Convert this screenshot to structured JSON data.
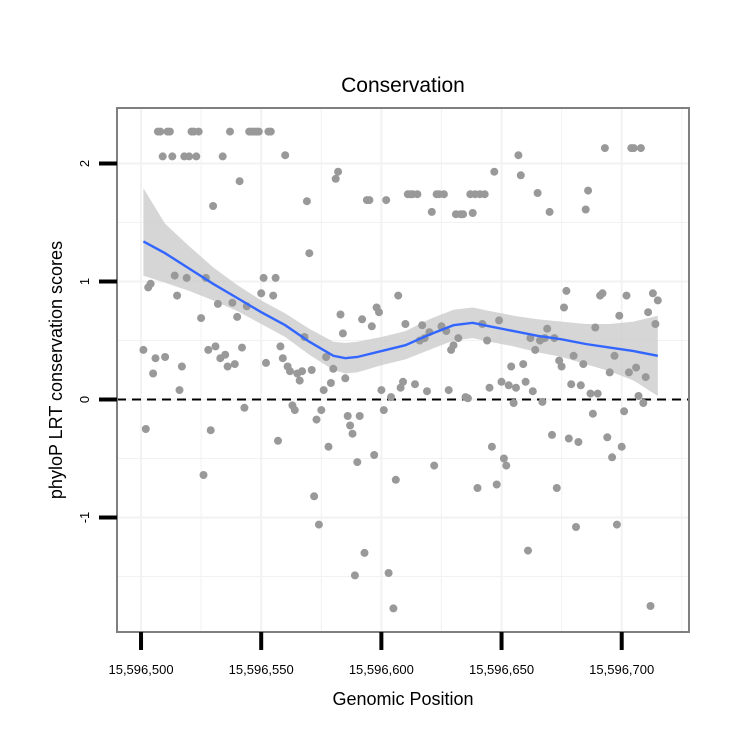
{
  "chart_data": {
    "type": "scatter",
    "title": "Conservation",
    "xlabel": "Genomic Position",
    "ylabel": "phyloP LRT conservation scores",
    "xlim": [
      15596490,
      15596728
    ],
    "ylim": [
      -1.97,
      2.47
    ],
    "x_ticks": [
      15596500,
      15596550,
      15596600,
      15596650,
      15596700
    ],
    "x_tick_labels": [
      "15,596,500",
      "15,596,550",
      "15,596,600",
      "15,596,650",
      "15,596,700"
    ],
    "y_ticks": [
      -1,
      0,
      1,
      2
    ],
    "y_tick_labels": [
      "-1",
      "0",
      "1",
      "2"
    ],
    "colors": {
      "points": "#999999",
      "smooth_line": "#3366ff",
      "ribbon": "#c8c8c8",
      "panel_border": "#7f7f7f",
      "grid": "#f2f2f2",
      "reference_line": "#000000"
    },
    "reference_line": {
      "y": 0,
      "style": "dashed"
    },
    "points": [
      [
        15596501,
        0.42
      ],
      [
        15596502,
        -0.25
      ],
      [
        15596503,
        0.95
      ],
      [
        15596504,
        0.98
      ],
      [
        15596505,
        0.22
      ],
      [
        15596506,
        0.35
      ],
      [
        15596507,
        2.27
      ],
      [
        15596508,
        2.27
      ],
      [
        15596509,
        2.06
      ],
      [
        15596510,
        0.36
      ],
      [
        15596511,
        2.27
      ],
      [
        15596512,
        2.27
      ],
      [
        15596513,
        2.06
      ],
      [
        15596514,
        1.05
      ],
      [
        15596515,
        0.88
      ],
      [
        15596516,
        0.08
      ],
      [
        15596517,
        0.28
      ],
      [
        15596518,
        2.06
      ],
      [
        15596519,
        1.03
      ],
      [
        15596520,
        2.06
      ],
      [
        15596521,
        2.27
      ],
      [
        15596522,
        2.27
      ],
      [
        15596523,
        2.06
      ],
      [
        15596524,
        2.27
      ],
      [
        15596525,
        0.69
      ],
      [
        15596526,
        -0.64
      ],
      [
        15596527,
        1.03
      ],
      [
        15596528,
        0.42
      ],
      [
        15596529,
        -0.26
      ],
      [
        15596530,
        1.64
      ],
      [
        15596531,
        0.45
      ],
      [
        15596532,
        0.81
      ],
      [
        15596533,
        0.35
      ],
      [
        15596534,
        2.06
      ],
      [
        15596535,
        0.38
      ],
      [
        15596536,
        0.28
      ],
      [
        15596537,
        2.27
      ],
      [
        15596538,
        0.82
      ],
      [
        15596539,
        0.3
      ],
      [
        15596540,
        0.7
      ],
      [
        15596541,
        1.85
      ],
      [
        15596542,
        0.44
      ],
      [
        15596543,
        -0.07
      ],
      [
        15596544,
        0.79
      ],
      [
        15596545,
        2.27
      ],
      [
        15596546,
        2.27
      ],
      [
        15596547,
        2.27
      ],
      [
        15596548,
        2.27
      ],
      [
        15596549,
        2.27
      ],
      [
        15596550,
        0.9
      ],
      [
        15596551,
        1.03
      ],
      [
        15596552,
        0.31
      ],
      [
        15596553,
        2.27
      ],
      [
        15596554,
        2.27
      ],
      [
        15596555,
        0.88
      ],
      [
        15596556,
        1.03
      ],
      [
        15596557,
        -0.35
      ],
      [
        15596558,
        0.45
      ],
      [
        15596559,
        0.35
      ],
      [
        15596560,
        2.07
      ],
      [
        15596561,
        0.28
      ],
      [
        15596562,
        0.24
      ],
      [
        15596563,
        -0.05
      ],
      [
        15596564,
        -0.09
      ],
      [
        15596565,
        0.22
      ],
      [
        15596566,
        0.16
      ],
      [
        15596567,
        0.24
      ],
      [
        15596568,
        0.53
      ],
      [
        15596569,
        1.68
      ],
      [
        15596570,
        1.24
      ],
      [
        15596571,
        0.25
      ],
      [
        15596572,
        -0.82
      ],
      [
        15596573,
        -0.17
      ],
      [
        15596574,
        -1.06
      ],
      [
        15596575,
        -0.09
      ],
      [
        15596576,
        0.08
      ],
      [
        15596577,
        0.36
      ],
      [
        15596578,
        -0.4
      ],
      [
        15596579,
        0.14
      ],
      [
        15596580,
        0.26
      ],
      [
        15596581,
        1.87
      ],
      [
        15596582,
        1.93
      ],
      [
        15596583,
        0.72
      ],
      [
        15596584,
        0.56
      ],
      [
        15596585,
        0.18
      ],
      [
        15596586,
        -0.14
      ],
      [
        15596587,
        -0.22
      ],
      [
        15596588,
        -0.29
      ],
      [
        15596589,
        -1.49
      ],
      [
        15596590,
        -0.53
      ],
      [
        15596591,
        -0.14
      ],
      [
        15596592,
        0.68
      ],
      [
        15596593,
        -1.3
      ],
      [
        15596594,
        1.69
      ],
      [
        15596595,
        1.69
      ],
      [
        15596596,
        0.62
      ],
      [
        15596597,
        -0.47
      ],
      [
        15596598,
        0.78
      ],
      [
        15596599,
        0.74
      ],
      [
        15596600,
        0.08
      ],
      [
        15596601,
        -0.09
      ],
      [
        15596602,
        1.69
      ],
      [
        15596603,
        -1.47
      ],
      [
        15596604,
        0.02
      ],
      [
        15596605,
        -1.77
      ],
      [
        15596606,
        -0.68
      ],
      [
        15596607,
        0.88
      ],
      [
        15596608,
        0.1
      ],
      [
        15596609,
        0.15
      ],
      [
        15596610,
        0.64
      ],
      [
        15596611,
        1.74
      ],
      [
        15596612,
        1.74
      ],
      [
        15596613,
        1.74
      ],
      [
        15596614,
        0.13
      ],
      [
        15596615,
        1.74
      ],
      [
        15596616,
        0.5
      ],
      [
        15596617,
        0.63
      ],
      [
        15596618,
        0.52
      ],
      [
        15596619,
        0.07
      ],
      [
        15596620,
        0.57
      ],
      [
        15596621,
        1.59
      ],
      [
        15596622,
        -0.56
      ],
      [
        15596623,
        1.74
      ],
      [
        15596624,
        1.74
      ],
      [
        15596625,
        0.62
      ],
      [
        15596626,
        1.74
      ],
      [
        15596627,
        0.58
      ],
      [
        15596628,
        0.08
      ],
      [
        15596629,
        0.42
      ],
      [
        15596630,
        0.46
      ],
      [
        15596631,
        1.57
      ],
      [
        15596632,
        0.52
      ],
      [
        15596633,
        1.57
      ],
      [
        15596634,
        1.57
      ],
      [
        15596635,
        0.02
      ],
      [
        15596636,
        0.01
      ],
      [
        15596637,
        1.74
      ],
      [
        15596638,
        1.58
      ],
      [
        15596639,
        1.74
      ],
      [
        15596640,
        -0.75
      ],
      [
        15596641,
        1.74
      ],
      [
        15596642,
        0.64
      ],
      [
        15596643,
        1.74
      ],
      [
        15596644,
        0.5
      ],
      [
        15596645,
        0.1
      ],
      [
        15596646,
        -0.4
      ],
      [
        15596647,
        1.93
      ],
      [
        15596648,
        -0.72
      ],
      [
        15596649,
        0.67
      ],
      [
        15596650,
        0.15
      ],
      [
        15596651,
        -0.5
      ],
      [
        15596652,
        -0.56
      ],
      [
        15596653,
        0.12
      ],
      [
        15596654,
        0.28
      ],
      [
        15596655,
        -0.03
      ],
      [
        15596656,
        0.1
      ],
      [
        15596657,
        2.07
      ],
      [
        15596658,
        1.9
      ],
      [
        15596659,
        0.3
      ],
      [
        15596660,
        0.15
      ],
      [
        15596661,
        -1.28
      ],
      [
        15596662,
        0.52
      ],
      [
        15596663,
        0.07
      ],
      [
        15596664,
        0.42
      ],
      [
        15596665,
        1.75
      ],
      [
        15596666,
        0.5
      ],
      [
        15596667,
        -0.02
      ],
      [
        15596668,
        0.52
      ],
      [
        15596669,
        0.6
      ],
      [
        15596670,
        1.59
      ],
      [
        15596671,
        -0.3
      ],
      [
        15596672,
        0.52
      ],
      [
        15596673,
        -0.75
      ],
      [
        15596674,
        0.33
      ],
      [
        15596675,
        0.28
      ],
      [
        15596676,
        0.78
      ],
      [
        15596677,
        0.92
      ],
      [
        15596678,
        -0.33
      ],
      [
        15596679,
        0.13
      ],
      [
        15596680,
        0.37
      ],
      [
        15596681,
        -1.08
      ],
      [
        15596682,
        -0.36
      ],
      [
        15596683,
        0.12
      ],
      [
        15596684,
        0.3
      ],
      [
        15596685,
        1.61
      ],
      [
        15596686,
        1.77
      ],
      [
        15596687,
        0.05
      ],
      [
        15596688,
        -0.12
      ],
      [
        15596689,
        0.61
      ],
      [
        15596690,
        0.05
      ],
      [
        15596691,
        0.88
      ],
      [
        15596692,
        0.9
      ],
      [
        15596693,
        2.13
      ],
      [
        15596694,
        -0.32
      ],
      [
        15596695,
        0.23
      ],
      [
        15596696,
        -0.49
      ],
      [
        15596697,
        0.37
      ],
      [
        15596698,
        -1.06
      ],
      [
        15596699,
        0.71
      ],
      [
        15596700,
        -0.4
      ],
      [
        15596701,
        -0.1
      ],
      [
        15596702,
        0.88
      ],
      [
        15596703,
        0.23
      ],
      [
        15596704,
        2.13
      ],
      [
        15596705,
        2.13
      ],
      [
        15596706,
        0.27
      ],
      [
        15596707,
        0.03
      ],
      [
        15596708,
        2.13
      ],
      [
        15596709,
        -0.03
      ],
      [
        15596710,
        0.19
      ],
      [
        15596711,
        0.74
      ],
      [
        15596712,
        -1.75
      ],
      [
        15596713,
        0.9
      ],
      [
        15596714,
        0.64
      ],
      [
        15596715,
        0.84
      ]
    ],
    "smooth": {
      "x": [
        15596501,
        15596510,
        15596520,
        15596530,
        15596540,
        15596550,
        15596560,
        15596570,
        15596580,
        15596585,
        15596590,
        15596600,
        15596610,
        15596620,
        15596630,
        15596638,
        15596645,
        15596655,
        15596665,
        15596675,
        15596685,
        15596695,
        15596705,
        15596715
      ],
      "y": [
        1.34,
        1.24,
        1.11,
        0.98,
        0.86,
        0.74,
        0.63,
        0.49,
        0.37,
        0.35,
        0.36,
        0.41,
        0.46,
        0.55,
        0.63,
        0.65,
        0.62,
        0.58,
        0.54,
        0.51,
        0.47,
        0.44,
        0.41,
        0.37
      ],
      "lower": [
        1.05,
        0.99,
        0.92,
        0.84,
        0.75,
        0.64,
        0.53,
        0.38,
        0.25,
        0.22,
        0.23,
        0.29,
        0.34,
        0.42,
        0.5,
        0.52,
        0.49,
        0.45,
        0.4,
        0.36,
        0.3,
        0.24,
        0.16,
        0.03
      ],
      "upper": [
        1.79,
        1.49,
        1.3,
        1.12,
        0.97,
        0.84,
        0.73,
        0.6,
        0.49,
        0.48,
        0.49,
        0.53,
        0.58,
        0.68,
        0.76,
        0.78,
        0.75,
        0.71,
        0.68,
        0.66,
        0.64,
        0.64,
        0.66,
        0.71
      ]
    }
  }
}
